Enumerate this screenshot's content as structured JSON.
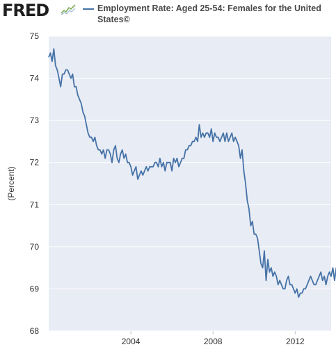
{
  "header": {
    "logo": "FRED",
    "logo_icon": "trend-line-icon"
  },
  "colors": {
    "series": "#4572a7",
    "plot_background": "#e8ecf4",
    "grid": "#ffffff"
  },
  "chart_data": {
    "type": "line",
    "title": "",
    "xlabel": "",
    "ylabel": "(Percent)",
    "ylim": [
      68,
      75
    ],
    "yticks": [
      68,
      69,
      70,
      71,
      72,
      73,
      74,
      75
    ],
    "xlim": [
      2000.0,
      2013.75
    ],
    "xticks": [
      {
        "value": 2004,
        "label": "2004"
      },
      {
        "value": 2008,
        "label": "2008"
      },
      {
        "value": 2012,
        "label": "2012"
      }
    ],
    "grid": "horizontal",
    "legend_position": "top",
    "series": [
      {
        "name": "Employment Rate: Aged 25-54: Females for the United States©",
        "color": "#4572a7",
        "x_start": "2000-01",
        "frequency": "monthly",
        "values": [
          74.5,
          74.6,
          74.4,
          74.7,
          74.3,
          74.2,
          74.0,
          73.8,
          74.1,
          74.1,
          74.2,
          74.2,
          74.1,
          74.0,
          74.1,
          73.8,
          73.8,
          73.6,
          73.5,
          73.4,
          73.2,
          73.1,
          72.9,
          72.7,
          72.6,
          72.6,
          72.5,
          72.6,
          72.4,
          72.3,
          72.3,
          72.2,
          72.3,
          72.1,
          72.3,
          72.3,
          72.2,
          72.0,
          72.3,
          72.4,
          72.1,
          72.0,
          72.2,
          72.3,
          72.1,
          72.2,
          72.0,
          72.0,
          71.9,
          71.7,
          71.8,
          71.9,
          71.6,
          71.7,
          71.8,
          71.7,
          71.8,
          71.9,
          71.8,
          71.9,
          71.9,
          71.9,
          72.0,
          72.0,
          71.9,
          72.1,
          71.9,
          72.0,
          71.8,
          72.0,
          72.0,
          72.0,
          71.8,
          72.1,
          72.0,
          72.1,
          71.9,
          72.0,
          72.1,
          72.1,
          72.3,
          72.3,
          72.4,
          72.4,
          72.5,
          72.5,
          72.6,
          72.5,
          72.9,
          72.6,
          72.7,
          72.6,
          72.7,
          72.7,
          72.6,
          72.8,
          72.5,
          72.7,
          72.6,
          72.6,
          72.5,
          72.6,
          72.7,
          72.5,
          72.7,
          72.5,
          72.6,
          72.7,
          72.5,
          72.6,
          72.5,
          72.4,
          72.1,
          72.3,
          71.8,
          71.5,
          71.1,
          70.9,
          70.5,
          70.6,
          70.3,
          70.3,
          70.2,
          69.9,
          69.6,
          69.5,
          69.9,
          69.2,
          69.7,
          69.4,
          69.5,
          69.3,
          69.4,
          69.3,
          69.1,
          69.2,
          69.1,
          69.0,
          69.0,
          69.2,
          69.3,
          69.1,
          69.1,
          69.0,
          68.9,
          69.0,
          68.8,
          68.9,
          68.9,
          69.0,
          69.0,
          69.1,
          69.2,
          69.3,
          69.2,
          69.1,
          69.1,
          69.2,
          69.3,
          69.4,
          69.2,
          69.3,
          69.1,
          69.3,
          69.4,
          69.3,
          69.5,
          69.2,
          69.5,
          69.5,
          69.6,
          69.4,
          69.5,
          69.6
        ]
      }
    ]
  }
}
